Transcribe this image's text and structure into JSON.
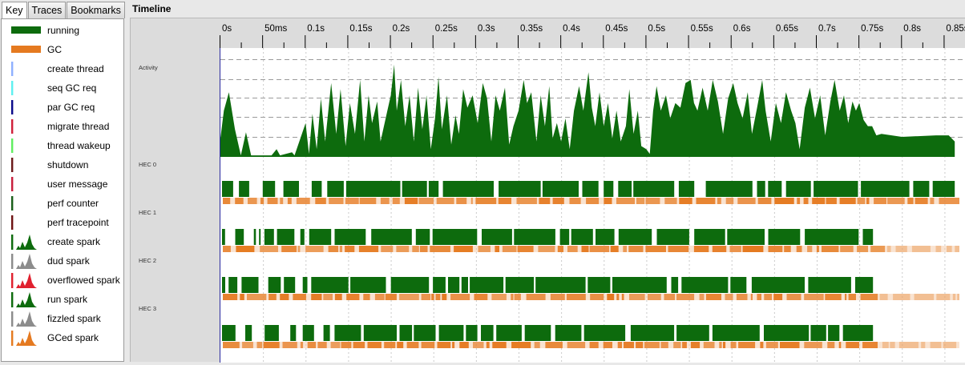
{
  "tabs": [
    {
      "label": "Key",
      "active": true
    },
    {
      "label": "Traces",
      "active": false
    },
    {
      "label": "Bookmarks",
      "active": false
    }
  ],
  "key_items": [
    {
      "label": "running",
      "icon": "running-bar",
      "color": "#0d6b0d"
    },
    {
      "label": "GC",
      "icon": "gc-bar",
      "color": "#e57a20"
    },
    {
      "label": "create thread",
      "icon": "create-thread-line",
      "color": "#8fb0ff"
    },
    {
      "label": "seq GC req",
      "icon": "seq-gc-req-line",
      "color": "#5ef0f0"
    },
    {
      "label": "par GC req",
      "icon": "par-gc-req-line",
      "color": "#0a0a8a"
    },
    {
      "label": "migrate thread",
      "icon": "migrate-thread-line",
      "color": "#d0203a"
    },
    {
      "label": "thread wakeup",
      "icon": "thread-wakeup-line",
      "color": "#60ee60"
    },
    {
      "label": "shutdown",
      "icon": "shutdown-line",
      "color": "#6b1a1a"
    },
    {
      "label": "user message",
      "icon": "user-message-line",
      "color": "#c81e3c"
    },
    {
      "label": "perf counter",
      "icon": "perf-counter-line",
      "color": "#1a5e1a"
    },
    {
      "label": "perf tracepoint",
      "icon": "perf-tracepoint-line",
      "color": "#6e1212"
    },
    {
      "label": "create spark",
      "icon": "create-spark-graph",
      "color": "#0d6b0d"
    },
    {
      "label": "dud spark",
      "icon": "dud-spark-graph",
      "color": "#8c8c8c"
    },
    {
      "label": "overflowed spark",
      "icon": "overflowed-spark-graph",
      "color": "#e0202e"
    },
    {
      "label": "run spark",
      "icon": "run-spark-graph",
      "color": "#0d6b0d"
    },
    {
      "label": "fizzled spark",
      "icon": "fizzled-spark-graph",
      "color": "#8c8c8c"
    },
    {
      "label": "GCed spark",
      "icon": "gced-spark-graph",
      "color": "#e57a20"
    }
  ],
  "timeline": {
    "title": "Timeline",
    "ticks": [
      "0s",
      "50ms",
      "0.1s",
      "0.15s",
      "0.2s",
      "0.25s",
      "0.3s",
      "0.35s",
      "0.4s",
      "0.45s",
      "0.5s",
      "0.55s",
      "0.6s",
      "0.65s",
      "0.7s",
      "0.75s",
      "0.8s",
      "0.85s"
    ],
    "max_time_s": 0.875,
    "rows": [
      {
        "label": "Activity",
        "type": "activity"
      },
      {
        "label": "HEC 0",
        "type": "hec",
        "end_s": 0.862
      },
      {
        "label": "HEC 1",
        "type": "hec",
        "end_s": 0.766
      },
      {
        "label": "HEC 2",
        "type": "hec",
        "end_s": 0.766
      },
      {
        "label": "HEC 3",
        "type": "hec",
        "end_s": 0.766
      }
    ],
    "activity_profile": [
      [
        0,
        0.12
      ],
      [
        0.004,
        0.3
      ],
      [
        0.01,
        0.42
      ],
      [
        0.017,
        0.18
      ],
      [
        0.024,
        0.01
      ],
      [
        0.03,
        0.16
      ],
      [
        0.036,
        0.01
      ],
      [
        0.06,
        0.01
      ],
      [
        0.066,
        0.05
      ],
      [
        0.07,
        0.01
      ],
      [
        0.084,
        0.03
      ],
      [
        0.087,
        0.01
      ],
      [
        0.1,
        0.22
      ],
      [
        0.104,
        0.02
      ],
      [
        0.108,
        0.28
      ],
      [
        0.113,
        0.05
      ],
      [
        0.118,
        0.38
      ],
      [
        0.123,
        0.1
      ],
      [
        0.13,
        0.48
      ],
      [
        0.136,
        0.15
      ],
      [
        0.141,
        0.44
      ],
      [
        0.147,
        0.07
      ],
      [
        0.152,
        0.35
      ],
      [
        0.158,
        0.15
      ],
      [
        0.164,
        0.5
      ],
      [
        0.169,
        0.1
      ],
      [
        0.174,
        0.4
      ],
      [
        0.178,
        0.22
      ],
      [
        0.184,
        0.36
      ],
      [
        0.188,
        0.1
      ],
      [
        0.196,
        0.3
      ],
      [
        0.2,
        0.4
      ],
      [
        0.204,
        0.6
      ],
      [
        0.207,
        0.3
      ],
      [
        0.212,
        0.5
      ],
      [
        0.217,
        0.2
      ],
      [
        0.222,
        0.4
      ],
      [
        0.227,
        0.1
      ],
      [
        0.232,
        0.45
      ],
      [
        0.237,
        0.18
      ],
      [
        0.242,
        0.4
      ],
      [
        0.247,
        0.05
      ],
      [
        0.252,
        0.25
      ],
      [
        0.256,
        0.52
      ],
      [
        0.26,
        0.18
      ],
      [
        0.266,
        0.4
      ],
      [
        0.271,
        0.08
      ],
      [
        0.276,
        0.27
      ],
      [
        0.28,
        0.15
      ],
      [
        0.285,
        0.44
      ],
      [
        0.29,
        0.32
      ],
      [
        0.296,
        0.4
      ],
      [
        0.302,
        0.22
      ],
      [
        0.308,
        0.48
      ],
      [
        0.313,
        0.38
      ],
      [
        0.318,
        0.1
      ],
      [
        0.323,
        0.4
      ],
      [
        0.328,
        0.3
      ],
      [
        0.334,
        0.45
      ],
      [
        0.339,
        0.08
      ],
      [
        0.344,
        0.2
      ],
      [
        0.35,
        0.3
      ],
      [
        0.356,
        0.5
      ],
      [
        0.36,
        0.35
      ],
      [
        0.365,
        0.42
      ],
      [
        0.371,
        0.1
      ],
      [
        0.376,
        0.4
      ],
      [
        0.381,
        0.2
      ],
      [
        0.386,
        0.46
      ],
      [
        0.39,
        0.12
      ],
      [
        0.395,
        0.22
      ],
      [
        0.4,
        0.1
      ],
      [
        0.405,
        0.25
      ],
      [
        0.41,
        0.05
      ],
      [
        0.415,
        0.3
      ],
      [
        0.421,
        0.46
      ],
      [
        0.426,
        0.3
      ],
      [
        0.432,
        0.55
      ],
      [
        0.436,
        0.32
      ],
      [
        0.44,
        0.2
      ],
      [
        0.445,
        0.42
      ],
      [
        0.45,
        0.2
      ],
      [
        0.455,
        0.35
      ],
      [
        0.46,
        0.12
      ],
      [
        0.465,
        0.3
      ],
      [
        0.47,
        0.1
      ],
      [
        0.476,
        0.2
      ],
      [
        0.48,
        0.44
      ],
      [
        0.485,
        0.15
      ],
      [
        0.49,
        0.3
      ],
      [
        0.494,
        0.07
      ],
      [
        0.5,
        0.05
      ],
      [
        0.504,
        0.02
      ],
      [
        0.508,
        0.3
      ],
      [
        0.512,
        0.46
      ],
      [
        0.517,
        0.3
      ],
      [
        0.523,
        0.4
      ],
      [
        0.528,
        0.25
      ],
      [
        0.534,
        0.35
      ],
      [
        0.54,
        0.32
      ],
      [
        0.546,
        0.48
      ],
      [
        0.552,
        0.5
      ],
      [
        0.556,
        0.35
      ],
      [
        0.56,
        0.3
      ],
      [
        0.566,
        0.45
      ],
      [
        0.572,
        0.3
      ],
      [
        0.578,
        0.5
      ],
      [
        0.584,
        0.36
      ],
      [
        0.59,
        0.15
      ],
      [
        0.596,
        0.38
      ],
      [
        0.602,
        0.48
      ],
      [
        0.607,
        0.35
      ],
      [
        0.613,
        0.25
      ],
      [
        0.619,
        0.42
      ],
      [
        0.624,
        0.15
      ],
      [
        0.63,
        0.32
      ],
      [
        0.636,
        0.5
      ],
      [
        0.64,
        0.3
      ],
      [
        0.646,
        0.1
      ],
      [
        0.652,
        0.35
      ],
      [
        0.658,
        0.22
      ],
      [
        0.664,
        0.42
      ],
      [
        0.67,
        0.3
      ],
      [
        0.675,
        0.22
      ],
      [
        0.68,
        0.05
      ],
      [
        0.686,
        0.32
      ],
      [
        0.692,
        0.45
      ],
      [
        0.698,
        0.25
      ],
      [
        0.704,
        0.4
      ],
      [
        0.71,
        0.14
      ],
      [
        0.716,
        0.36
      ],
      [
        0.721,
        0.5
      ],
      [
        0.727,
        0.3
      ],
      [
        0.732,
        0.4
      ],
      [
        0.737,
        0.22
      ],
      [
        0.742,
        0.36
      ],
      [
        0.746,
        0.3
      ],
      [
        0.75,
        0.35
      ],
      [
        0.755,
        0.24
      ],
      [
        0.76,
        0.2
      ],
      [
        0.765,
        0.2
      ],
      [
        0.77,
        0.14
      ],
      [
        0.776,
        0.15
      ],
      [
        0.8,
        0.13
      ],
      [
        0.84,
        0.14
      ],
      [
        0.855,
        0.14
      ],
      [
        0.862,
        0.1
      ]
    ],
    "colors": {
      "running": "#0d6b0d",
      "gc": "#e57a20",
      "gc_light": "#f4c8a3",
      "axis": "#2a2aa0",
      "grid": "#c9c9c9"
    }
  }
}
